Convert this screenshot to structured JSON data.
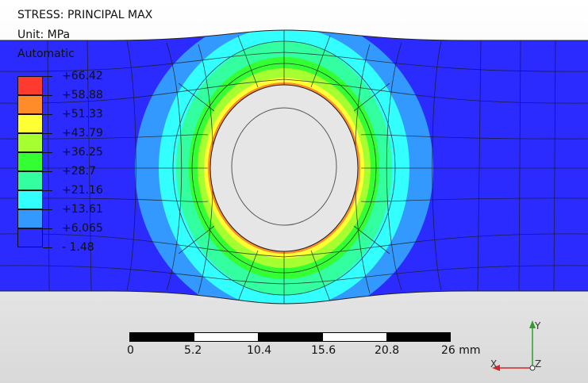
{
  "result": {
    "title": "STRESS: PRINCIPAL MAX",
    "unit": "Unit: MPa",
    "mode": "Automatic"
  },
  "legend": {
    "colors": [
      "#ff3b30",
      "#ff8c28",
      "#ffff33",
      "#a6ff30",
      "#33ff33",
      "#33ffa0",
      "#33ffff",
      "#3399ff",
      "#2b2bff"
    ],
    "values": [
      "+66.42",
      "+58.88",
      "+51.33",
      "+43.79",
      "+36.25",
      "+28.7",
      "+21.16",
      "+13.61",
      "+6.065",
      "- 1.48"
    ]
  },
  "scale_bar": {
    "labels": [
      "0",
      "5.2",
      "10.4",
      "15.6",
      "20.8",
      "26 mm"
    ]
  },
  "triad": {
    "y_label": "Y",
    "x_label": "X",
    "z_label": "Z",
    "y_color": "#2ca02c",
    "x_color": "#d62728"
  }
}
